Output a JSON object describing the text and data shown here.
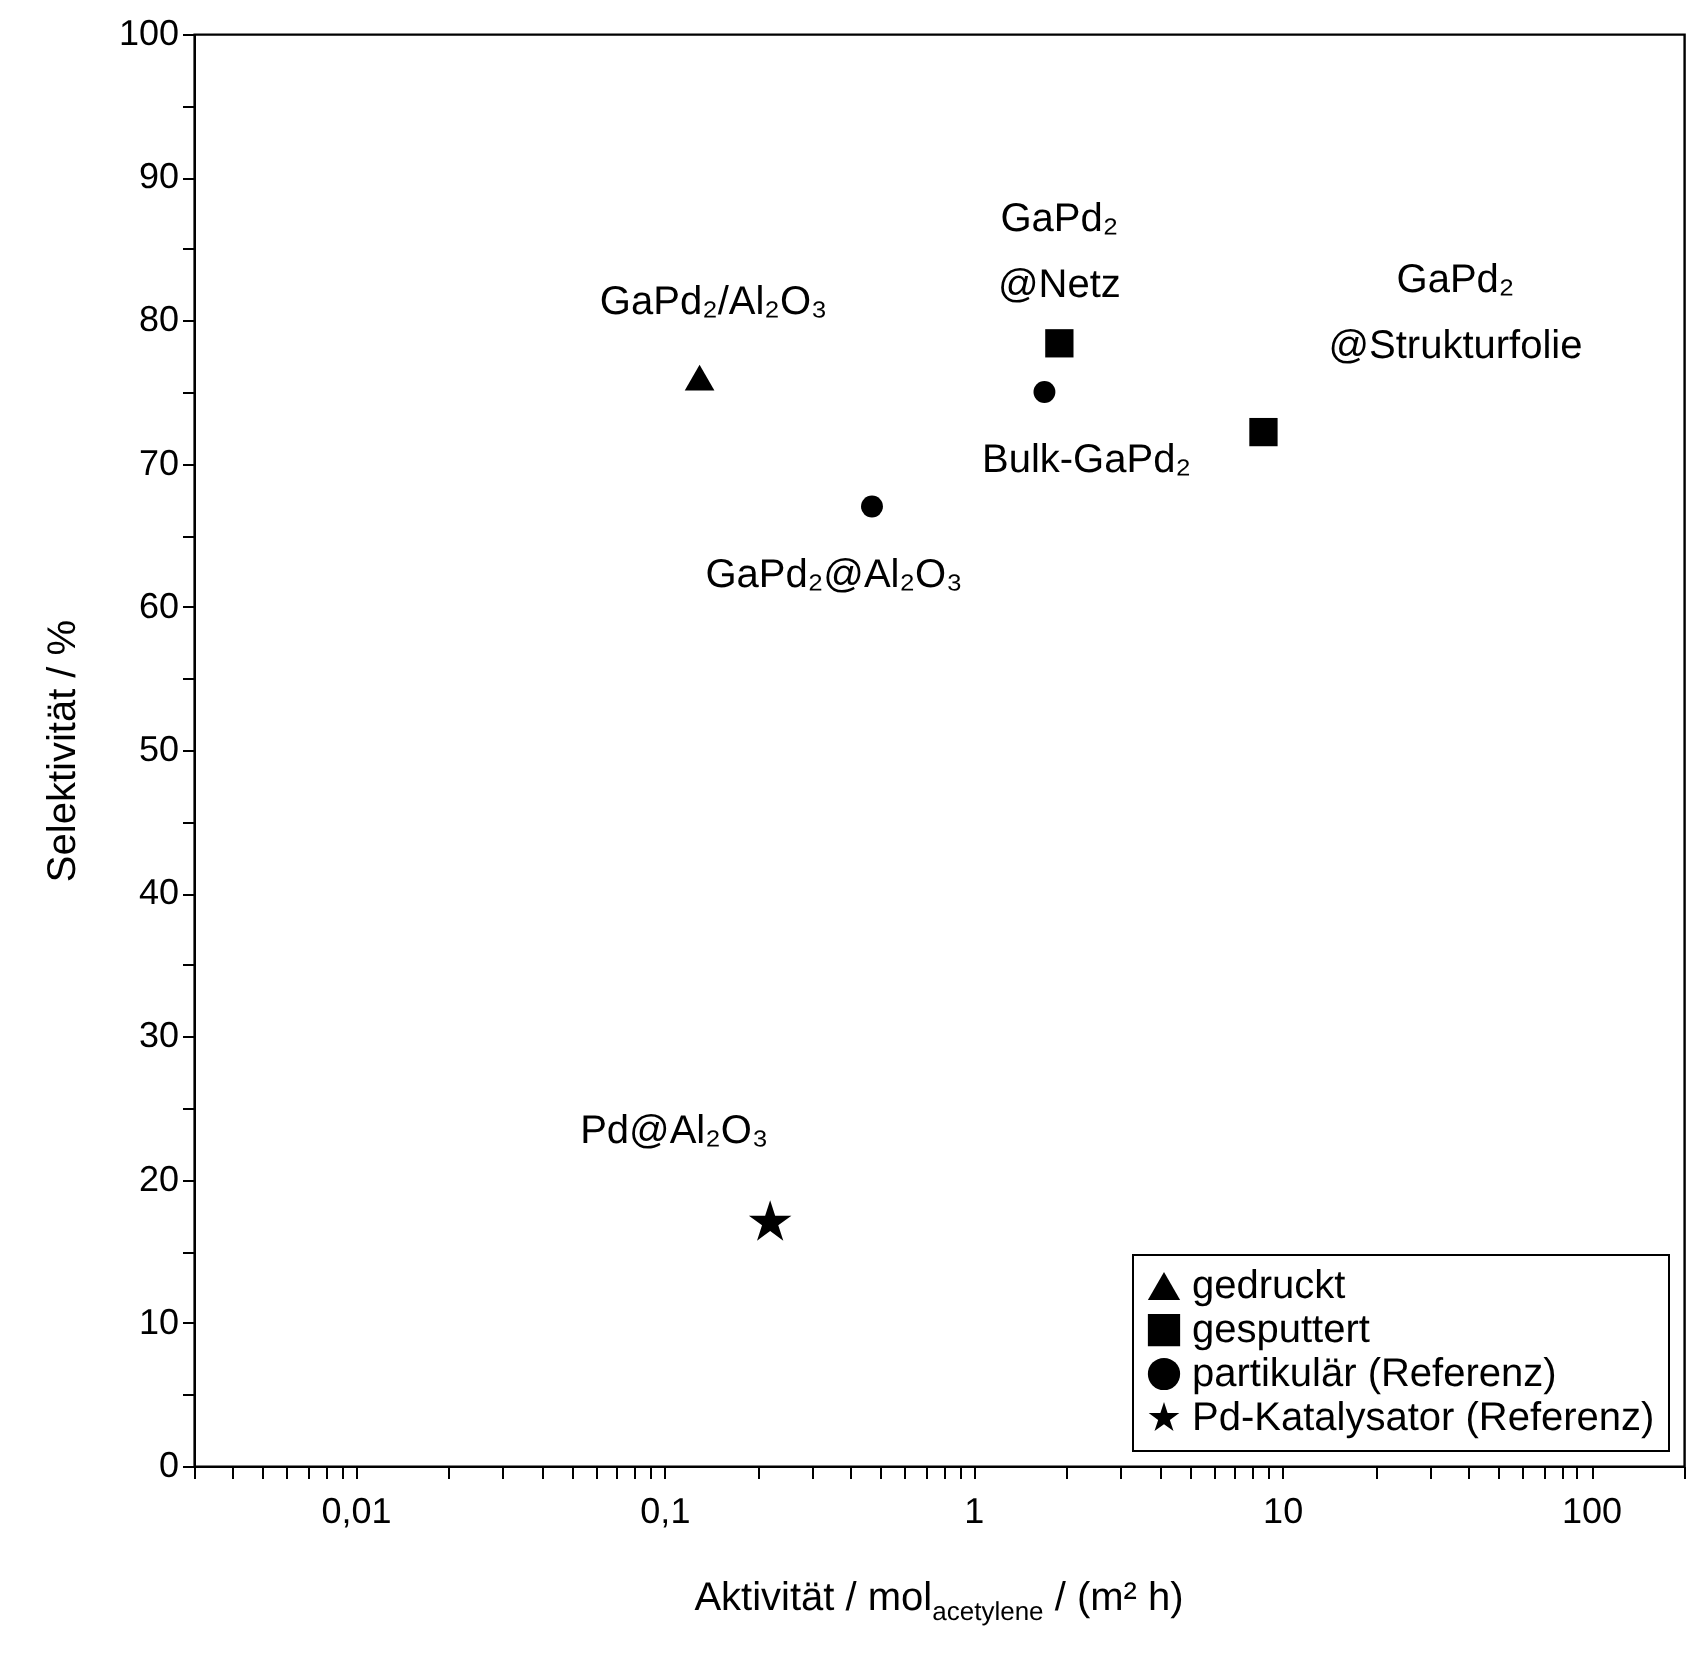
{
  "chart_data": {
    "type": "scatter",
    "xlabel": "Aktivität  / mol$_{acetylene}$ / (m² h)",
    "ylabel": "Selektivität  /  %",
    "log": "x",
    "xlim": [
      0.003,
      200
    ],
    "xticks": [
      {
        "value": 0.003,
        "label": null
      },
      {
        "value": 0.004,
        "label": null
      },
      {
        "value": 0.005,
        "label": null
      },
      {
        "value": 0.006,
        "label": null
      },
      {
        "value": 0.007,
        "label": null
      },
      {
        "value": 0.008,
        "label": null
      },
      {
        "value": 0.009,
        "label": null
      },
      {
        "value": 0.01,
        "label": "0,01"
      },
      {
        "value": 0.02,
        "label": null
      },
      {
        "value": 0.03,
        "label": null
      },
      {
        "value": 0.04,
        "label": null
      },
      {
        "value": 0.05,
        "label": null
      },
      {
        "value": 0.06,
        "label": null
      },
      {
        "value": 0.07,
        "label": null
      },
      {
        "value": 0.08,
        "label": null
      },
      {
        "value": 0.09,
        "label": null
      },
      {
        "value": 0.1,
        "label": "0,1"
      },
      {
        "value": 0.2,
        "label": null
      },
      {
        "value": 0.3,
        "label": null
      },
      {
        "value": 0.4,
        "label": null
      },
      {
        "value": 0.5,
        "label": null
      },
      {
        "value": 0.6,
        "label": null
      },
      {
        "value": 0.7,
        "label": null
      },
      {
        "value": 0.8,
        "label": null
      },
      {
        "value": 0.9,
        "label": null
      },
      1,
      {
        "value": 2,
        "label": null
      },
      {
        "value": 3,
        "label": null
      },
      {
        "value": 4,
        "label": null
      },
      {
        "value": 5,
        "label": null
      },
      {
        "value": 6,
        "label": null
      },
      {
        "value": 7,
        "label": null
      },
      {
        "value": 8,
        "label": null
      },
      {
        "value": 9,
        "label": null
      },
      10,
      {
        "value": 20,
        "label": null
      },
      {
        "value": 30,
        "label": null
      },
      {
        "value": 40,
        "label": null
      },
      {
        "value": 50,
        "label": null
      },
      {
        "value": 60,
        "label": null
      },
      {
        "value": 70,
        "label": null
      },
      {
        "value": 80,
        "label": null
      },
      {
        "value": 90,
        "label": null
      },
      100,
      {
        "value": 200,
        "label": null
      }
    ],
    "ylim": [
      0,
      100
    ],
    "yticks": [
      0,
      {
        "value": 5,
        "label": null
      },
      10,
      {
        "value": 15,
        "label": null
      },
      20,
      {
        "value": 25,
        "label": null
      },
      30,
      {
        "value": 35,
        "label": null
      },
      40,
      {
        "value": 45,
        "label": null
      },
      50,
      {
        "value": 55,
        "label": null
      },
      60,
      {
        "value": 65,
        "label": null
      },
      70,
      {
        "value": 75,
        "label": null
      },
      80,
      {
        "value": 85,
        "label": null
      },
      90,
      {
        "value": 95,
        "label": null
      },
      100
    ],
    "grid": false,
    "legend": "bottom right",
    "series": [
      {
        "name": "gedruckt",
        "color": "#000000",
        "marker": "triangle",
        "x": [
          0.13
        ],
        "values": [
          76
        ]
      },
      {
        "name": "gesputtert",
        "color": "#000000",
        "marker": "square",
        "x": [
          1.9,
          8.7
        ],
        "values": [
          78.4,
          72.2
        ]
      },
      {
        "name": "partikulär (Referenz)",
        "color": "#000000",
        "marker": "circle",
        "x": [
          1.7,
          0.47
        ],
        "values": [
          75,
          67
        ]
      },
      {
        "name": "Pd-Katalysator (Referenz)",
        "color": "#000000",
        "marker": "star",
        "x": [
          0.22
        ],
        "values": [
          17
        ]
      }
    ],
    "annotations": [
      {
        "text": "GaPd₂/Al₂O₃",
        "x": 0.13,
        "y": 76
      },
      {
        "text": "GaPd₂\n@Netz",
        "x": 1.9,
        "y": 78.4
      },
      {
        "text": "GaPd₂\n@Strukturfolie",
        "x": 8.7,
        "y": 72.2
      },
      {
        "text": "Bulk-GaPd₂",
        "x": 1.7,
        "y": 75
      },
      {
        "text": "GaPd₂@Al₂O₃",
        "x": 0.47,
        "y": 67
      },
      {
        "text": "Pd@Al₂O₃",
        "x": 0.22,
        "y": 17
      }
    ]
  }
}
